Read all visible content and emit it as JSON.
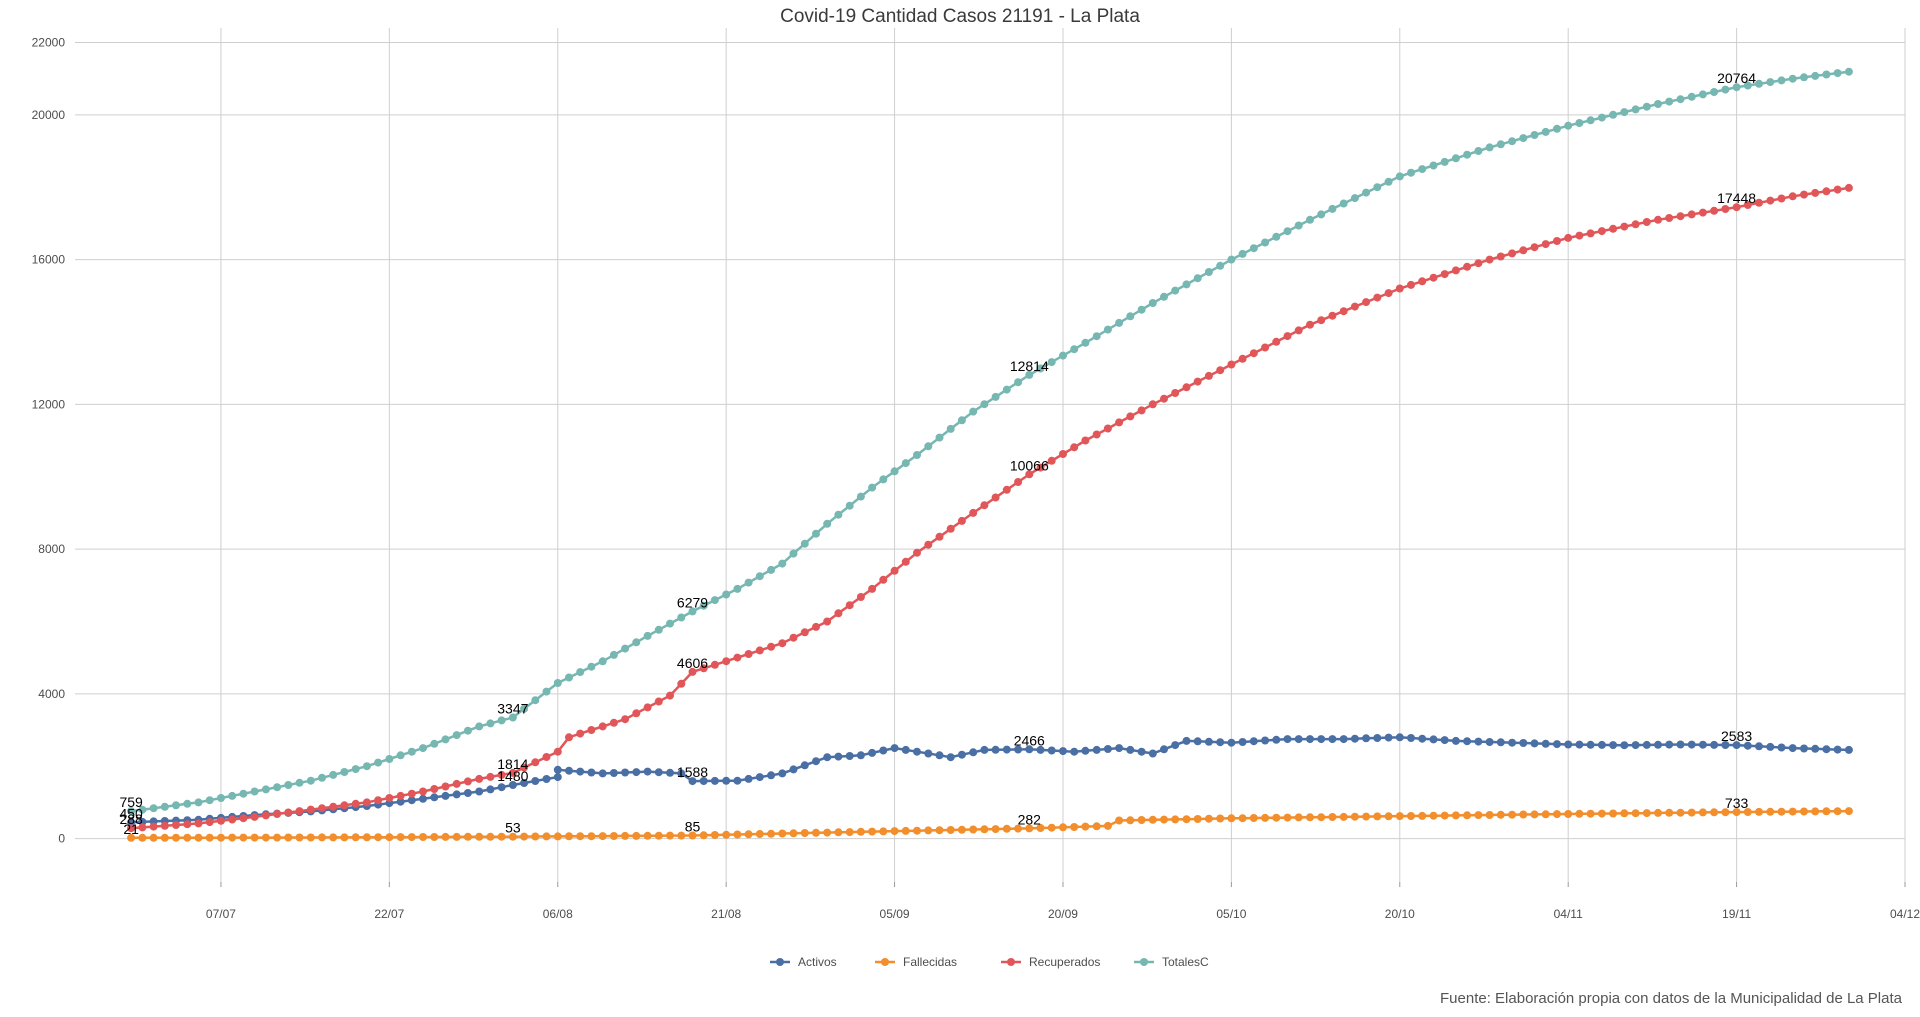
{
  "chart_data": {
    "type": "line",
    "title": "Covid-19 Cantidad Casos 21191 - La Plata",
    "caption": "Fuente: Elaboración propia con datos de la Municipalidad de La Plata",
    "xlabel": "",
    "ylabel": "",
    "x_start": "2020-06-29",
    "x_end": "2020-11-29",
    "xlim": [
      "2020-06-24",
      "2020-12-04"
    ],
    "ylim": [
      -1200,
      22400
    ],
    "yticks": [
      0,
      4000,
      8000,
      12000,
      16000,
      20000,
      22000
    ],
    "xticks": [
      {
        "date": "2020-07-07",
        "label": "07/07"
      },
      {
        "date": "2020-07-22",
        "label": "22/07"
      },
      {
        "date": "2020-08-06",
        "label": "06/08"
      },
      {
        "date": "2020-08-21",
        "label": "21/08"
      },
      {
        "date": "2020-09-05",
        "label": "05/09"
      },
      {
        "date": "2020-09-20",
        "label": "20/09"
      },
      {
        "date": "2020-10-05",
        "label": "05/10"
      },
      {
        "date": "2020-10-20",
        "label": "20/10"
      },
      {
        "date": "2020-11-04",
        "label": "04/11"
      },
      {
        "date": "2020-11-19",
        "label": "19/11"
      },
      {
        "date": "2020-12-04",
        "label": "04/12"
      }
    ],
    "grid": true,
    "legend_position": "bottom",
    "series": [
      {
        "name": "Activos",
        "color": "#4a6fa5",
        "points": [
          [
            "2020-06-29",
            450
          ],
          [
            "2020-07-05",
            520
          ],
          [
            "2020-07-10",
            650
          ],
          [
            "2020-07-15",
            750
          ],
          [
            "2020-07-20",
            900
          ],
          [
            "2020-07-25",
            1100
          ],
          [
            "2020-07-30",
            1300
          ],
          [
            "2020-08-02",
            1480
          ],
          [
            "2020-08-06",
            1700
          ],
          [
            "2020-08-06",
            1900
          ],
          [
            "2020-08-10",
            1800
          ],
          [
            "2020-08-14",
            1850
          ],
          [
            "2020-08-17",
            1800
          ],
          [
            "2020-08-18",
            1588
          ],
          [
            "2020-08-22",
            1600
          ],
          [
            "2020-08-26",
            1800
          ],
          [
            "2020-08-30",
            2250
          ],
          [
            "2020-09-02",
            2300
          ],
          [
            "2020-09-05",
            2500
          ],
          [
            "2020-09-10",
            2250
          ],
          [
            "2020-09-13",
            2450
          ],
          [
            "2020-09-17",
            2466
          ],
          [
            "2020-09-21",
            2400
          ],
          [
            "2020-09-25",
            2500
          ],
          [
            "2020-09-28",
            2350
          ],
          [
            "2020-10-01",
            2700
          ],
          [
            "2020-10-05",
            2650
          ],
          [
            "2020-10-10",
            2750
          ],
          [
            "2020-10-15",
            2750
          ],
          [
            "2020-10-20",
            2800
          ],
          [
            "2020-10-25",
            2700
          ],
          [
            "2020-10-30",
            2650
          ],
          [
            "2020-11-04",
            2600
          ],
          [
            "2020-11-09",
            2580
          ],
          [
            "2020-11-14",
            2600
          ],
          [
            "2020-11-19",
            2583
          ],
          [
            "2020-11-24",
            2500
          ],
          [
            "2020-11-29",
            2450
          ]
        ],
        "labels": [
          {
            "date": "2020-06-29",
            "value": 450,
            "text": "450"
          },
          {
            "date": "2020-08-02",
            "value": 1480,
            "text": "1480"
          },
          {
            "date": "2020-08-18",
            "value": 1588,
            "text": "1588"
          },
          {
            "date": "2020-09-17",
            "value": 2466,
            "text": "2466"
          },
          {
            "date": "2020-11-19",
            "value": 2583,
            "text": "2583"
          }
        ]
      },
      {
        "name": "Fallecidas",
        "color": "#f28e2b",
        "points": [
          [
            "2020-06-29",
            21
          ],
          [
            "2020-07-15",
            30
          ],
          [
            "2020-08-02",
            53
          ],
          [
            "2020-08-18",
            85
          ],
          [
            "2020-09-01",
            180
          ],
          [
            "2020-09-17",
            282
          ],
          [
            "2020-09-24",
            350
          ],
          [
            "2020-09-25",
            500
          ],
          [
            "2020-10-05",
            560
          ],
          [
            "2020-10-20",
            620
          ],
          [
            "2020-11-04",
            680
          ],
          [
            "2020-11-19",
            733
          ],
          [
            "2020-11-29",
            760
          ]
        ],
        "labels": [
          {
            "date": "2020-06-29",
            "value": 21,
            "text": "21"
          },
          {
            "date": "2020-08-02",
            "value": 53,
            "text": "53"
          },
          {
            "date": "2020-08-18",
            "value": 85,
            "text": "85"
          },
          {
            "date": "2020-09-17",
            "value": 282,
            "text": "282"
          },
          {
            "date": "2020-11-19",
            "value": 733,
            "text": "733"
          }
        ]
      },
      {
        "name": "Recuperados",
        "color": "#e15759",
        "points": [
          [
            "2020-06-29",
            288
          ],
          [
            "2020-07-05",
            420
          ],
          [
            "2020-07-10",
            600
          ],
          [
            "2020-07-15",
            800
          ],
          [
            "2020-07-20",
            1000
          ],
          [
            "2020-07-25",
            1300
          ],
          [
            "2020-07-30",
            1650
          ],
          [
            "2020-08-02",
            1814
          ],
          [
            "2020-08-06",
            2400
          ],
          [
            "2020-08-07",
            2800
          ],
          [
            "2020-08-12",
            3300
          ],
          [
            "2020-08-16",
            3950
          ],
          [
            "2020-08-18",
            4606
          ],
          [
            "2020-08-22",
            5000
          ],
          [
            "2020-08-26",
            5400
          ],
          [
            "2020-08-30",
            6000
          ],
          [
            "2020-09-03",
            6900
          ],
          [
            "2020-09-07",
            7900
          ],
          [
            "2020-09-12",
            9000
          ],
          [
            "2020-09-17",
            10066
          ],
          [
            "2020-09-22",
            11000
          ],
          [
            "2020-09-28",
            12000
          ],
          [
            "2020-10-05",
            13100
          ],
          [
            "2020-10-12",
            14200
          ],
          [
            "2020-10-20",
            15200
          ],
          [
            "2020-10-28",
            16000
          ],
          [
            "2020-11-04",
            16600
          ],
          [
            "2020-11-12",
            17100
          ],
          [
            "2020-11-19",
            17448
          ],
          [
            "2020-11-24",
            17750
          ],
          [
            "2020-11-29",
            17980
          ]
        ],
        "labels": [
          {
            "date": "2020-06-29",
            "value": 288,
            "text": "288"
          },
          {
            "date": "2020-08-02",
            "value": 1814,
            "text": "1814"
          },
          {
            "date": "2020-08-18",
            "value": 4606,
            "text": "4606"
          },
          {
            "date": "2020-09-17",
            "value": 10066,
            "text": "10066"
          },
          {
            "date": "2020-11-19",
            "value": 17448,
            "text": "17448"
          }
        ]
      },
      {
        "name": "TotalesC",
        "color": "#76b7b2",
        "points": [
          [
            "2020-06-29",
            759
          ],
          [
            "2020-07-05",
            1000
          ],
          [
            "2020-07-10",
            1300
          ],
          [
            "2020-07-15",
            1600
          ],
          [
            "2020-07-20",
            2000
          ],
          [
            "2020-07-25",
            2500
          ],
          [
            "2020-07-30",
            3100
          ],
          [
            "2020-08-02",
            3347
          ],
          [
            "2020-08-06",
            4300
          ],
          [
            "2020-08-10",
            4900
          ],
          [
            "2020-08-14",
            5600
          ],
          [
            "2020-08-18",
            6279
          ],
          [
            "2020-08-22",
            6900
          ],
          [
            "2020-08-26",
            7600
          ],
          [
            "2020-08-30",
            8700
          ],
          [
            "2020-09-03",
            9700
          ],
          [
            "2020-09-07",
            10600
          ],
          [
            "2020-09-12",
            11800
          ],
          [
            "2020-09-17",
            12814
          ],
          [
            "2020-09-22",
            13700
          ],
          [
            "2020-09-28",
            14800
          ],
          [
            "2020-10-05",
            16000
          ],
          [
            "2020-10-12",
            17100
          ],
          [
            "2020-10-20",
            18300
          ],
          [
            "2020-10-28",
            19100
          ],
          [
            "2020-11-04",
            19700
          ],
          [
            "2020-11-12",
            20300
          ],
          [
            "2020-11-19",
            20764
          ],
          [
            "2020-11-24",
            21000
          ],
          [
            "2020-11-29",
            21191
          ]
        ],
        "labels": [
          {
            "date": "2020-06-29",
            "value": 759,
            "text": "759"
          },
          {
            "date": "2020-08-02",
            "value": 3347,
            "text": "3347"
          },
          {
            "date": "2020-08-18",
            "value": 6279,
            "text": "6279"
          },
          {
            "date": "2020-09-17",
            "value": 12814,
            "text": "12814"
          },
          {
            "date": "2020-11-19",
            "value": 20764,
            "text": "20764"
          }
        ]
      }
    ]
  }
}
